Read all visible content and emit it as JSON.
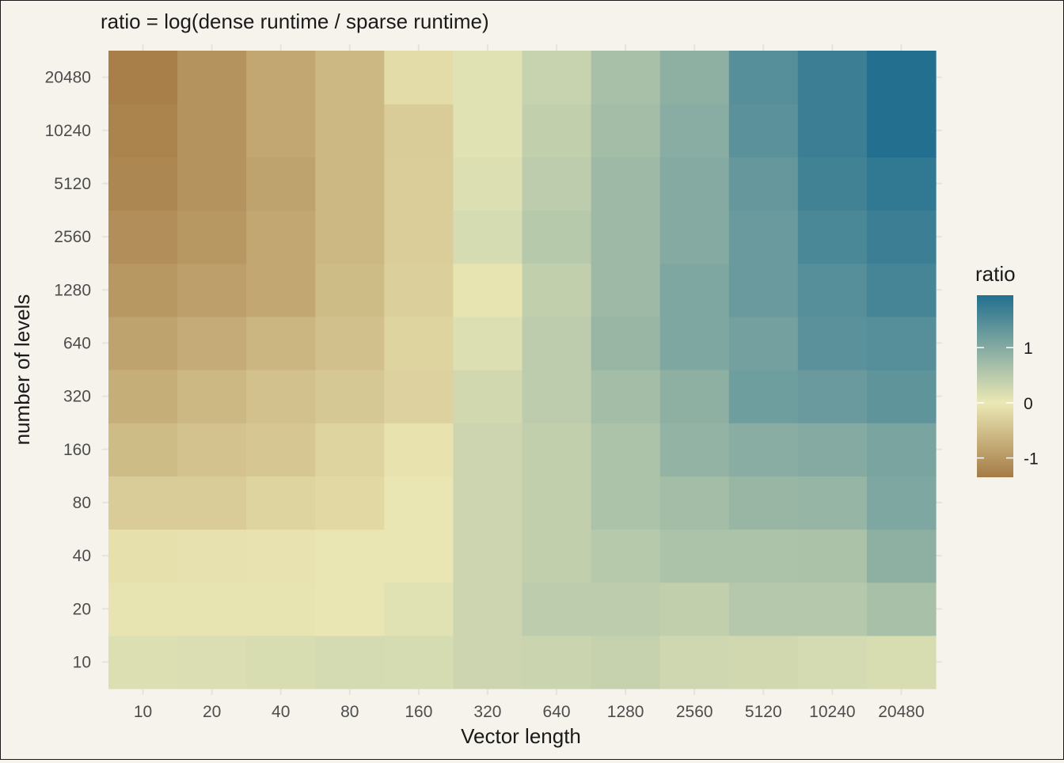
{
  "chart_data": {
    "type": "heatmap",
    "title": "ratio = log(dense runtime / sparse runtime)",
    "xlabel": "Vector length",
    "ylabel": "number of levels",
    "x_categories": [
      "10",
      "20",
      "40",
      "80",
      "160",
      "320",
      "640",
      "1280",
      "2560",
      "5120",
      "10240",
      "20480"
    ],
    "y_categories": [
      "10",
      "20",
      "40",
      "80",
      "160",
      "320",
      "640",
      "1280",
      "2560",
      "5120",
      "10240",
      "20480"
    ],
    "values": [
      [
        0.15,
        0.16,
        0.18,
        0.22,
        0.2,
        0.3,
        0.32,
        0.36,
        0.28,
        0.25,
        0.22,
        0.18
      ],
      [
        -0.05,
        -0.05,
        -0.05,
        -0.02,
        0.1,
        0.3,
        0.45,
        0.45,
        0.4,
        0.52,
        0.52,
        0.65
      ],
      [
        -0.1,
        -0.09,
        -0.07,
        -0.03,
        -0.02,
        0.3,
        0.4,
        0.5,
        0.6,
        0.6,
        0.62,
        0.9
      ],
      [
        -0.35,
        -0.35,
        -0.25,
        -0.2,
        -0.03,
        0.3,
        0.4,
        0.6,
        0.7,
        0.8,
        0.82,
        1.05
      ],
      [
        -0.55,
        -0.47,
        -0.42,
        -0.25,
        -0.08,
        0.3,
        0.4,
        0.6,
        0.85,
        0.95,
        1.0,
        1.1
      ],
      [
        -0.72,
        -0.6,
        -0.48,
        -0.4,
        -0.27,
        0.25,
        0.45,
        0.7,
        0.9,
        1.2,
        1.25,
        1.35
      ],
      [
        -0.85,
        -0.75,
        -0.62,
        -0.5,
        -0.25,
        0.15,
        0.45,
        0.8,
        1.05,
        1.15,
        1.4,
        1.45
      ],
      [
        -1.0,
        -0.9,
        -0.8,
        -0.55,
        -0.3,
        -0.05,
        0.4,
        0.75,
        1.05,
        1.25,
        1.45,
        1.6
      ],
      [
        -1.1,
        -1.0,
        -0.8,
        -0.6,
        -0.33,
        0.2,
        0.5,
        0.75,
        1.0,
        1.25,
        1.55,
        1.7
      ],
      [
        -1.2,
        -1.05,
        -0.85,
        -0.6,
        -0.33,
        0.15,
        0.45,
        0.75,
        1.0,
        1.3,
        1.65,
        1.8
      ],
      [
        -1.25,
        -1.05,
        -0.8,
        -0.6,
        -0.35,
        0.1,
        0.4,
        0.7,
        0.95,
        1.4,
        1.7,
        1.95
      ],
      [
        -1.3,
        -1.05,
        -0.8,
        -0.6,
        -0.15,
        0.1,
        0.35,
        0.65,
        0.9,
        1.45,
        1.7,
        1.95
      ]
    ],
    "legend": {
      "title": "ratio",
      "ticks": [
        {
          "value": 1,
          "label": "1"
        },
        {
          "value": 0,
          "label": "0"
        },
        {
          "value": -1,
          "label": "-1"
        }
      ],
      "range": [
        -1.35,
        1.95
      ],
      "position": "right"
    },
    "colors": {
      "low": "#a57b45",
      "mid": "#ebe8b5",
      "high": "#226f8f",
      "background": "#f6f3ec",
      "grid": "#e6e3dc"
    },
    "grid": true
  }
}
